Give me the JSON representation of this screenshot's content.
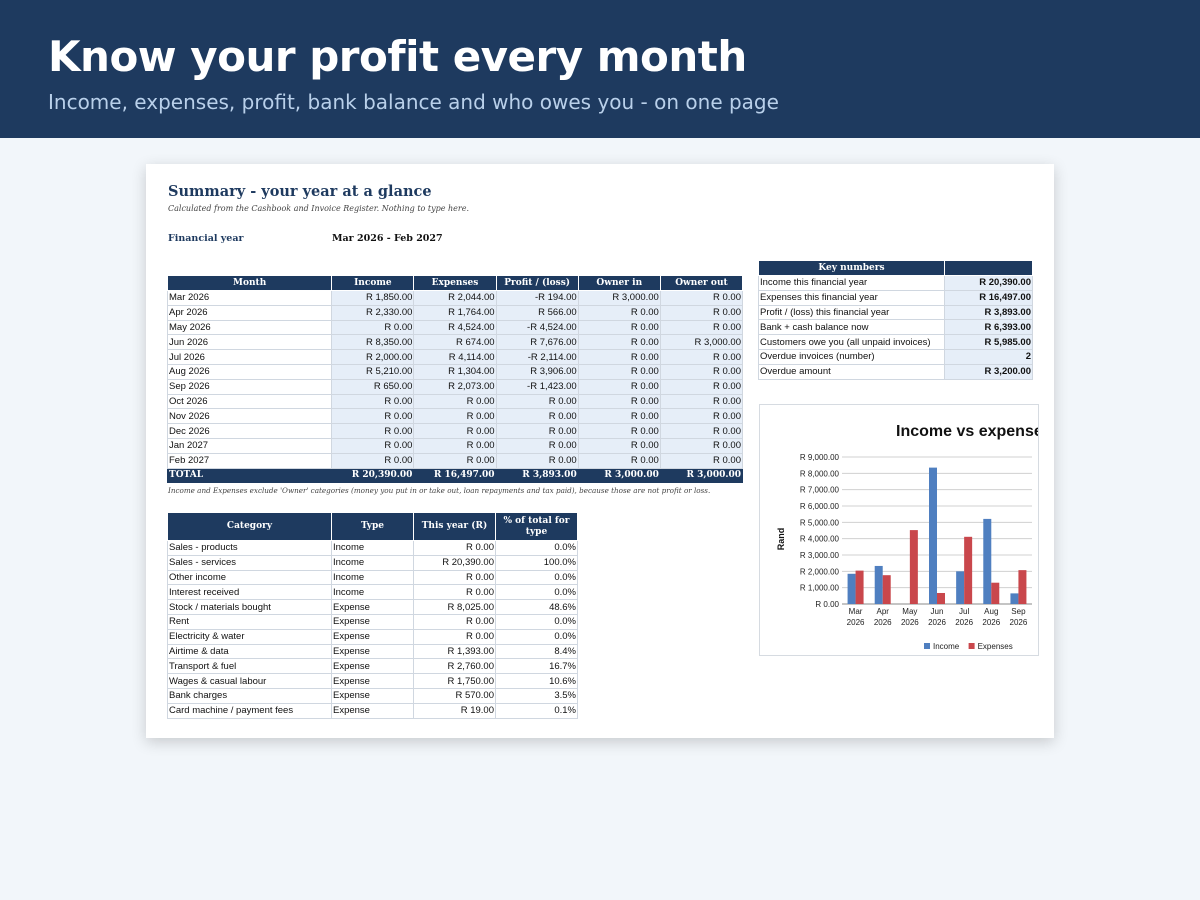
{
  "banner": {
    "title": "Know your profit every month",
    "subtitle": "Income, expenses, profit, bank balance and who owes you - on one page"
  },
  "summary": {
    "title": "Summary - your year at a glance",
    "note": "Calculated from the Cashbook and Invoice Register. Nothing to type here.",
    "financial_year_label": "Financial year",
    "financial_year_value": "Mar 2026 - Feb 2027"
  },
  "monthly_table": {
    "headers": [
      "Month",
      "Income",
      "Expenses",
      "Profit / (loss)",
      "Owner in",
      "Owner out"
    ],
    "rows": [
      [
        "Mar 2026",
        "R 1,850.00",
        "R 2,044.00",
        "-R 194.00",
        "R 3,000.00",
        "R 0.00"
      ],
      [
        "Apr 2026",
        "R 2,330.00",
        "R 1,764.00",
        "R 566.00",
        "R 0.00",
        "R 0.00"
      ],
      [
        "May 2026",
        "R 0.00",
        "R 4,524.00",
        "-R 4,524.00",
        "R 0.00",
        "R 0.00"
      ],
      [
        "Jun 2026",
        "R 8,350.00",
        "R 674.00",
        "R 7,676.00",
        "R 0.00",
        "R 3,000.00"
      ],
      [
        "Jul 2026",
        "R 2,000.00",
        "R 4,114.00",
        "-R 2,114.00",
        "R 0.00",
        "R 0.00"
      ],
      [
        "Aug 2026",
        "R 5,210.00",
        "R 1,304.00",
        "R 3,906.00",
        "R 0.00",
        "R 0.00"
      ],
      [
        "Sep 2026",
        "R 650.00",
        "R 2,073.00",
        "-R 1,423.00",
        "R 0.00",
        "R 0.00"
      ],
      [
        "Oct 2026",
        "R 0.00",
        "R 0.00",
        "R 0.00",
        "R 0.00",
        "R 0.00"
      ],
      [
        "Nov 2026",
        "R 0.00",
        "R 0.00",
        "R 0.00",
        "R 0.00",
        "R 0.00"
      ],
      [
        "Dec 2026",
        "R 0.00",
        "R 0.00",
        "R 0.00",
        "R 0.00",
        "R 0.00"
      ],
      [
        "Jan 2027",
        "R 0.00",
        "R 0.00",
        "R 0.00",
        "R 0.00",
        "R 0.00"
      ],
      [
        "Feb 2027",
        "R 0.00",
        "R 0.00",
        "R 0.00",
        "R 0.00",
        "R 0.00"
      ]
    ],
    "total": [
      "TOTAL",
      "R 20,390.00",
      "R 16,497.00",
      "R 3,893.00",
      "R 3,000.00",
      "R 3,000.00"
    ],
    "note": "Income and Expenses exclude 'Owner' categories (money you put in or take out, loan repayments and tax paid), because those are not profit or loss."
  },
  "category_table": {
    "headers": [
      "Category",
      "Type",
      "This year (R)",
      "% of total for type"
    ],
    "rows": [
      [
        "Sales - products",
        "Income",
        "R 0.00",
        "0.0%"
      ],
      [
        "Sales - services",
        "Income",
        "R 20,390.00",
        "100.0%"
      ],
      [
        "Other income",
        "Income",
        "R 0.00",
        "0.0%"
      ],
      [
        "Interest received",
        "Income",
        "R 0.00",
        "0.0%"
      ],
      [
        "Stock / materials bought",
        "Expense",
        "R 8,025.00",
        "48.6%"
      ],
      [
        "Rent",
        "Expense",
        "R 0.00",
        "0.0%"
      ],
      [
        "Electricity & water",
        "Expense",
        "R 0.00",
        "0.0%"
      ],
      [
        "Airtime & data",
        "Expense",
        "R 1,393.00",
        "8.4%"
      ],
      [
        "Transport & fuel",
        "Expense",
        "R 2,760.00",
        "16.7%"
      ],
      [
        "Wages & casual labour",
        "Expense",
        "R 1,750.00",
        "10.6%"
      ],
      [
        "Bank charges",
        "Expense",
        "R 570.00",
        "3.5%"
      ],
      [
        "Card machine / payment fees",
        "Expense",
        "R 19.00",
        "0.1%"
      ]
    ]
  },
  "key_numbers": {
    "header": "Key numbers",
    "rows": [
      [
        "Income this financial year",
        "R 20,390.00"
      ],
      [
        "Expenses this financial year",
        "R 16,497.00"
      ],
      [
        "Profit / (loss) this financial year",
        "R 3,893.00"
      ],
      [
        "Bank + cash balance now",
        "R 6,393.00"
      ],
      [
        "Customers owe you (all unpaid invoices)",
        "R 5,985.00"
      ],
      [
        "Overdue invoices (number)",
        "2"
      ],
      [
        "Overdue amount",
        "R 3,200.00"
      ]
    ]
  },
  "chart_data": {
    "type": "bar",
    "title": "Income vs expense",
    "ylabel": "Rand",
    "xlabel": "",
    "categories": [
      "Mar 2026",
      "Apr 2026",
      "May 2026",
      "Jun 2026",
      "Jul 2026",
      "Aug 2026",
      "Sep 2026"
    ],
    "series": [
      {
        "name": "Income",
        "color": "#4f7fc0",
        "values": [
          1850,
          2330,
          0,
          8350,
          2000,
          5210,
          650
        ]
      },
      {
        "name": "Expenses",
        "color": "#c9474c",
        "values": [
          2044,
          1764,
          4524,
          674,
          4114,
          1304,
          2073
        ]
      }
    ],
    "ylim": [
      0,
      9000
    ],
    "yticks": [
      "R 0.00",
      "R 1,000.00",
      "R 2,000.00",
      "R 3,000.00",
      "R 4,000.00",
      "R 5,000.00",
      "R 6,000.00",
      "R 7,000.00",
      "R 8,000.00",
      "R 9,000.00"
    ],
    "grid": true,
    "legend_position": "bottom"
  }
}
